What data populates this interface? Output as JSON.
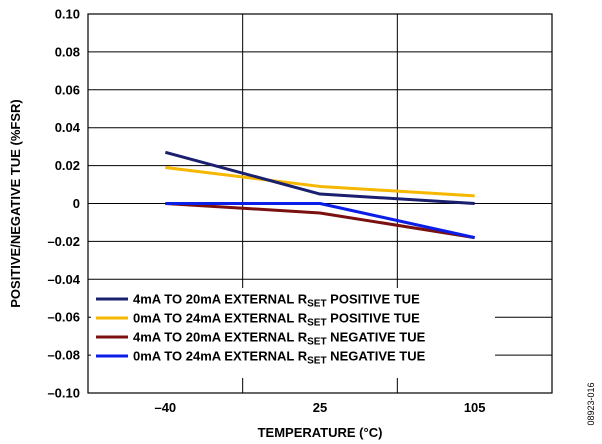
{
  "chart_data": {
    "type": "line",
    "xlabel": "TEMPERATURE (°C)",
    "ylabel": "POSITIVE/NEGATIVE TUE (%FSR)",
    "x": [
      -40,
      25,
      105
    ],
    "x_tick_labels": [
      "–40",
      "25",
      "105"
    ],
    "ylim": [
      -0.1,
      0.1
    ],
    "y_ticks": [
      0.1,
      0.08,
      0.06,
      0.04,
      0.02,
      0,
      -0.02,
      -0.04,
      -0.06,
      -0.08,
      -0.1
    ],
    "y_tick_labels": [
      "0.10",
      "0.08",
      "0.06",
      "0.04",
      "0.02",
      "0",
      "–0.02",
      "–0.04",
      "–0.06",
      "–0.08",
      "–0.10"
    ],
    "grid": true,
    "legend_position": "bottom-left",
    "series": [
      {
        "name_main": "4mA TO 20mA EXTERNAL R",
        "name_sub": "SET",
        "name_tail": " POSITIVE TUE",
        "color": "#1a1f6e",
        "values": [
          0.027,
          0.005,
          0.0
        ]
      },
      {
        "name_main": "0mA TO 24mA EXTERNAL R",
        "name_sub": "SET",
        "name_tail": " POSITIVE TUE",
        "color": "#f5b700",
        "values": [
          0.019,
          0.009,
          0.004
        ]
      },
      {
        "name_main": "4mA TO 20mA EXTERNAL R",
        "name_sub": "SET",
        "name_tail": " NEGATIVE TUE",
        "color": "#7a1010",
        "values": [
          0.0,
          -0.005,
          -0.018
        ]
      },
      {
        "name_main": "0mA TO 24mA EXTERNAL R",
        "name_sub": "SET",
        "name_tail": " NEGATIVE TUE",
        "color": "#0a1ee8",
        "values": [
          0.0,
          0.0,
          -0.018
        ]
      }
    ],
    "figure_number": "08923-016"
  }
}
